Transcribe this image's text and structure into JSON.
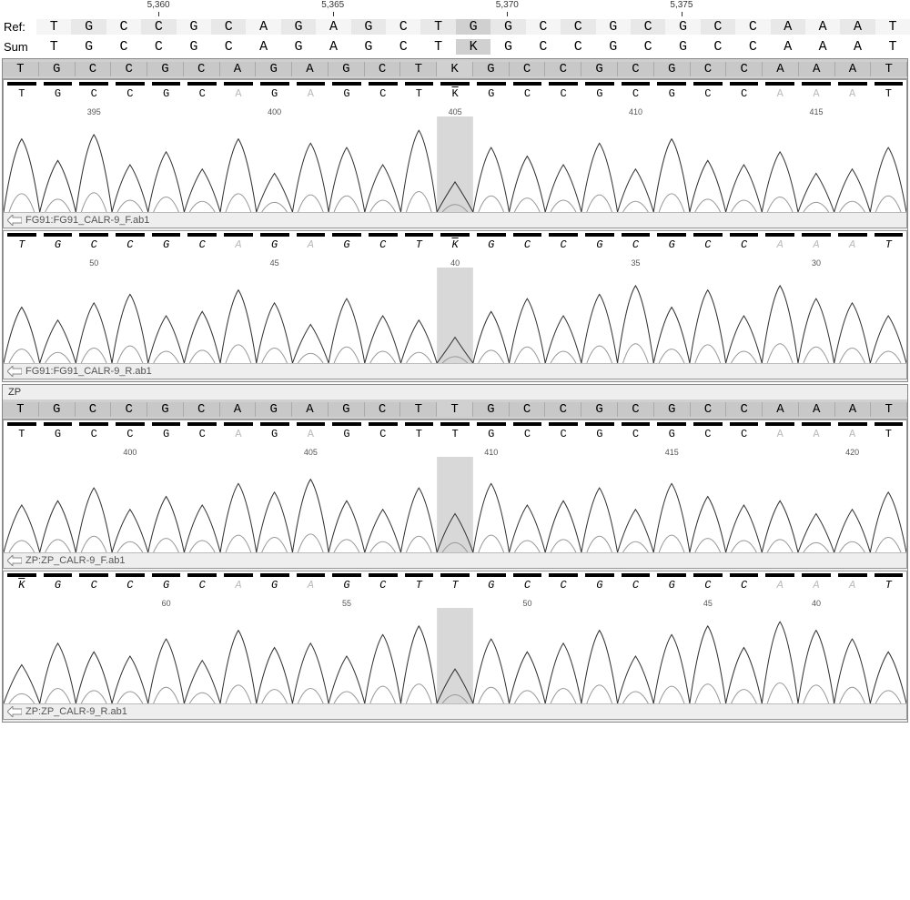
{
  "ruler": {
    "positions": [
      "5,360",
      "5,365",
      "5,370",
      "5,375"
    ],
    "position_indices": [
      3,
      8,
      13,
      18
    ]
  },
  "ref": {
    "label": "Ref:",
    "seq": [
      "T",
      "G",
      "C",
      "C",
      "G",
      "C",
      "A",
      "G",
      "A",
      "G",
      "C",
      "T",
      "G",
      "G",
      "C",
      "C",
      "G",
      "C",
      "G",
      "C",
      "C",
      "A",
      "A",
      "A",
      "T"
    ]
  },
  "sum": {
    "label": "Sum",
    "seq": [
      "T",
      "G",
      "C",
      "C",
      "G",
      "C",
      "A",
      "G",
      "A",
      "G",
      "C",
      "T",
      "K",
      "G",
      "C",
      "C",
      "G",
      "C",
      "G",
      "C",
      "C",
      "A",
      "A",
      "A",
      "T"
    ]
  },
  "highlight_col": 12,
  "cell_count": 25,
  "colors": {
    "A": "#888888",
    "C": "#000000",
    "G": "#555555",
    "T": "#333333",
    "K": "#333333"
  },
  "panels": [
    {
      "label": "",
      "header_seq": [
        "T",
        "G",
        "C",
        "C",
        "G",
        "C",
        "A",
        "G",
        "A",
        "G",
        "C",
        "T",
        "K",
        "G",
        "C",
        "C",
        "G",
        "C",
        "G",
        "C",
        "C",
        "A",
        "A",
        "A",
        "T"
      ],
      "highlight_col": 12,
      "traces": [
        {
          "sub_seq": [
            "T",
            "G",
            "C",
            "C",
            "G",
            "C",
            "A",
            "G",
            "A",
            "G",
            "C",
            "T",
            "K",
            "G",
            "C",
            "C",
            "G",
            "C",
            "G",
            "C",
            "C",
            "A",
            "A",
            "A",
            "T"
          ],
          "light_idx": [
            6,
            8,
            21,
            22,
            23
          ],
          "overline_idx": [
            12
          ],
          "numbers": {
            "2": "395",
            "7": "400",
            "12": "405",
            "17": "410",
            "22": "415"
          },
          "footer": "FG91:FG91_CALR-9_F.ab1",
          "italic": false,
          "peaks": [
            85,
            60,
            90,
            55,
            70,
            50,
            85,
            45,
            80,
            75,
            55,
            95,
            35,
            75,
            65,
            55,
            80,
            50,
            85,
            60,
            55,
            70,
            45,
            50,
            75
          ]
        },
        {
          "sub_seq": [
            "T",
            "G",
            "C",
            "C",
            "G",
            "C",
            "A",
            "G",
            "A",
            "G",
            "C",
            "T",
            "K",
            "G",
            "C",
            "C",
            "G",
            "C",
            "G",
            "C",
            "C",
            "A",
            "A",
            "A",
            "T"
          ],
          "light_idx": [
            6,
            8,
            21,
            22,
            23
          ],
          "overline_idx": [
            12
          ],
          "numbers": {
            "2": "50",
            "7": "45",
            "12": "40",
            "17": "35",
            "22": "30"
          },
          "footer": "FG91:FG91_CALR-9_R.ab1",
          "italic": true,
          "peaks": [
            65,
            50,
            70,
            80,
            55,
            60,
            85,
            70,
            45,
            75,
            55,
            50,
            30,
            60,
            75,
            55,
            80,
            90,
            65,
            85,
            55,
            90,
            75,
            70,
            55
          ]
        }
      ]
    },
    {
      "label": "ZP",
      "header_seq": [
        "T",
        "G",
        "C",
        "C",
        "G",
        "C",
        "A",
        "G",
        "A",
        "G",
        "C",
        "T",
        "T",
        "G",
        "C",
        "C",
        "G",
        "C",
        "G",
        "C",
        "C",
        "A",
        "A",
        "A",
        "T"
      ],
      "highlight_col": 12,
      "traces": [
        {
          "sub_seq": [
            "T",
            "G",
            "C",
            "C",
            "G",
            "C",
            "A",
            "G",
            "A",
            "G",
            "C",
            "T",
            "T",
            "G",
            "C",
            "C",
            "G",
            "C",
            "G",
            "C",
            "C",
            "A",
            "A",
            "A",
            "T"
          ],
          "light_idx": [
            6,
            8,
            21,
            22,
            23
          ],
          "overline_idx": [],
          "numbers": {
            "3": "400",
            "8": "405",
            "13": "410",
            "18": "415",
            "23": "420"
          },
          "footer": "ZP:ZP_CALR-9_F.ab1",
          "italic": false,
          "peaks": [
            55,
            60,
            75,
            50,
            65,
            55,
            80,
            70,
            85,
            60,
            50,
            75,
            45,
            80,
            55,
            60,
            75,
            50,
            80,
            65,
            55,
            60,
            45,
            50,
            70
          ]
        },
        {
          "sub_seq": [
            "K",
            "G",
            "C",
            "C",
            "G",
            "C",
            "A",
            "G",
            "A",
            "G",
            "C",
            "T",
            "T",
            "G",
            "C",
            "C",
            "G",
            "C",
            "G",
            "C",
            "C",
            "A",
            "A",
            "A",
            "T"
          ],
          "light_idx": [
            6,
            8,
            21,
            22,
            23
          ],
          "overline_idx": [
            0
          ],
          "numbers": {
            "4": "60",
            "9": "55",
            "14": "50",
            "19": "45",
            "22": "40"
          },
          "footer": "ZP:ZP_CALR-9_R.ab1",
          "italic": true,
          "peaks": [
            45,
            70,
            60,
            55,
            75,
            50,
            85,
            65,
            70,
            55,
            80,
            90,
            40,
            75,
            60,
            70,
            85,
            55,
            80,
            90,
            65,
            95,
            85,
            75,
            60
          ]
        }
      ]
    }
  ]
}
